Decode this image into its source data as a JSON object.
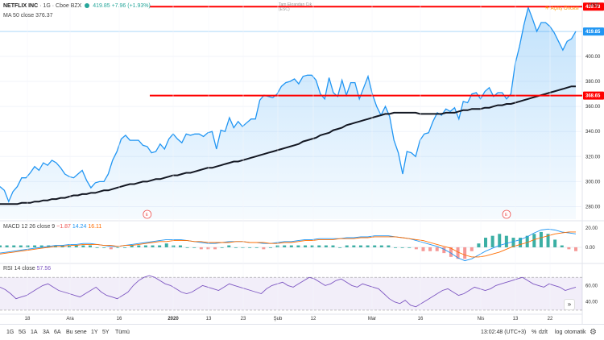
{
  "header": {
    "symbol": "NETFLIX INC",
    "interval": "1G",
    "exchange": "Cboe BZX",
    "price": "419.85",
    "change": "+7.96",
    "change_pct": "(+1.93%)",
    "ma_label": "MA 50 close",
    "ma_value": "376.37",
    "fullscreen_hint": "Tam Ekrandan Çık\n(ESC)",
    "market_status": "Açılış Öncesi",
    "currency": "USD"
  },
  "price_axis": {
    "ticks": [
      "400.00",
      "380.00",
      "360.00",
      "340.00",
      "320.00",
      "300.00",
      "280.00"
    ],
    "badges": [
      {
        "label": "439.73",
        "color": "#ff0000"
      },
      {
        "label": "419.85",
        "color": "#2196f3"
      },
      {
        "label": "368.65",
        "color": "#ff0000"
      }
    ]
  },
  "macd": {
    "label": "MACD 12 26 close 9",
    "hist": "−1.87",
    "macd": "14.24",
    "signal": "16.11",
    "ticks": [
      "20.00",
      "0.00"
    ]
  },
  "rsi": {
    "label": "RSI 14 close",
    "value": "57.56",
    "ticks": [
      "60.00",
      "40.00"
    ]
  },
  "time_axis": [
    "18",
    "Ara",
    "16",
    "2020",
    "13",
    "23",
    "Şub",
    "12",
    "Mar",
    "16",
    "Nis",
    "13",
    "22"
  ],
  "earnings_marker": "E",
  "bottom_bar": {
    "ranges": [
      "1G",
      "5G",
      "1A",
      "3A",
      "6A",
      "Bu sene",
      "1Y",
      "5Y",
      "Tümü"
    ],
    "time": "13:02:48 (UTC+3)",
    "pct": "%",
    "log": "log",
    "auto": "otomatik",
    "adjust": "dzlt"
  },
  "colors": {
    "price_line": "#2196f3",
    "ma_line": "#131722",
    "level_line": "#ff0000",
    "macd_line": "#2196f3",
    "signal_line": "#ff6d00",
    "hist_up": "#26a69a",
    "hist_down": "#ef5350",
    "rsi_line": "#7e57c2",
    "rsi_band": "#7e57c2"
  },
  "chart_data": {
    "type": "line",
    "title": "NETFLIX INC · 1G · Cboe BZX",
    "ylim": [
      270,
      445
    ],
    "levels": [
      439.73,
      368.65
    ],
    "last_price": 419.85,
    "series": [
      {
        "name": "close",
        "values": [
          296,
          293,
          284,
          292,
          296,
          303,
          303,
          307,
          312,
          309,
          315,
          313,
          317,
          315,
          311,
          306,
          304,
          303,
          306,
          309,
          301,
          295,
          299,
          300,
          300,
          306,
          317,
          324,
          334,
          337,
          333,
          333,
          333,
          329,
          328,
          323,
          324,
          330,
          326,
          334,
          338,
          334,
          331,
          338,
          337,
          338,
          338,
          336,
          339,
          340,
          326,
          341,
          340,
          351,
          343,
          348,
          344,
          347,
          350,
          350,
          365,
          369,
          368,
          367,
          370,
          376,
          379,
          380,
          382,
          378,
          384,
          385,
          385,
          381,
          370,
          366,
          383,
          371,
          368,
          381,
          369,
          379,
          379,
          366,
          375,
          384,
          370,
          360,
          353,
          360,
          352,
          333,
          323,
          306,
          324,
          323,
          320,
          333,
          338,
          339,
          348,
          355,
          353,
          358,
          356,
          359,
          350,
          364,
          363,
          370,
          371,
          366,
          372,
          375,
          368,
          371,
          371,
          366,
          370,
          394,
          408,
          425,
          439,
          430,
          420,
          427,
          427,
          424,
          419,
          412,
          405,
          412,
          414,
          420
        ]
      },
      {
        "name": "MA 50 close",
        "values": [
          282,
          282,
          282,
          282,
          282,
          283,
          283,
          283,
          284,
          284,
          285,
          285,
          286,
          286,
          287,
          287,
          288,
          289,
          289,
          290,
          290,
          291,
          291,
          292,
          293,
          293,
          294,
          295,
          296,
          297,
          298,
          298,
          299,
          300,
          300,
          301,
          302,
          302,
          303,
          304,
          305,
          305,
          306,
          307,
          307,
          308,
          309,
          310,
          311,
          311,
          312,
          313,
          314,
          315,
          316,
          316,
          317,
          318,
          319,
          320,
          321,
          322,
          323,
          324,
          325,
          326,
          327,
          328,
          329,
          330,
          332,
          333,
          334,
          335,
          337,
          338,
          339,
          341,
          342,
          343,
          345,
          346,
          347,
          348,
          349,
          350,
          351,
          352,
          353,
          354,
          354,
          355,
          355,
          355,
          355,
          355,
          355,
          354,
          354,
          354,
          354,
          354,
          354,
          355,
          355,
          355,
          356,
          357,
          357,
          358,
          358,
          358,
          359,
          359,
          360,
          361,
          361,
          362,
          362,
          363,
          364,
          365,
          366,
          367,
          368,
          369,
          370,
          371,
          372,
          373,
          374,
          375,
          376,
          376
        ]
      }
    ],
    "macd_series": [
      {
        "name": "MACD",
        "values": [
          -6,
          -5,
          -4,
          -3,
          -2,
          -1,
          0,
          1,
          2,
          2,
          3,
          3,
          4,
          4,
          3,
          2,
          1,
          1,
          2,
          3,
          4,
          5,
          6,
          7,
          8,
          8,
          8,
          7,
          6,
          5,
          4,
          4,
          5,
          6,
          6,
          6,
          5,
          5,
          4,
          4,
          5,
          6,
          6,
          7,
          8,
          8,
          9,
          9,
          9,
          9,
          10,
          10,
          11,
          11,
          12,
          12,
          12,
          11,
          10,
          9,
          7,
          5,
          3,
          1,
          -2,
          -6,
          -11,
          -14,
          -12,
          -8,
          -4,
          -1,
          2,
          4,
          6,
          8,
          11,
          15,
          18,
          19,
          18,
          16,
          15,
          14
        ]
      },
      {
        "name": "signal",
        "values": [
          -7,
          -6,
          -5,
          -4,
          -3,
          -2,
          -1,
          0,
          1,
          1,
          2,
          2,
          3,
          3,
          3,
          2,
          2,
          1,
          2,
          2,
          3,
          4,
          5,
          6,
          6,
          7,
          7,
          7,
          6,
          6,
          5,
          5,
          5,
          5,
          6,
          6,
          5,
          5,
          5,
          4,
          4,
          5,
          5,
          6,
          7,
          7,
          8,
          8,
          8,
          9,
          9,
          9,
          10,
          10,
          11,
          11,
          11,
          11,
          10,
          9,
          8,
          7,
          5,
          3,
          1,
          -1,
          -5,
          -8,
          -10,
          -10,
          -9,
          -7,
          -5,
          -2,
          1,
          3,
          5,
          8,
          10,
          12,
          14,
          15,
          16,
          16
        ]
      }
    ],
    "rsi_values": [
      58,
      55,
      50,
      44,
      46,
      48,
      52,
      56,
      60,
      62,
      58,
      54,
      52,
      50,
      48,
      46,
      50,
      54,
      58,
      52,
      48,
      46,
      44,
      48,
      52,
      60,
      66,
      70,
      72,
      70,
      66,
      62,
      60,
      56,
      52,
      50,
      52,
      56,
      60,
      58,
      56,
      54,
      58,
      62,
      60,
      58,
      56,
      54,
      52,
      50,
      56,
      60,
      62,
      64,
      60,
      58,
      62,
      66,
      70,
      68,
      64,
      60,
      62,
      66,
      68,
      64,
      60,
      58,
      62,
      60,
      58,
      56,
      50,
      44,
      40,
      38,
      42,
      36,
      34,
      38,
      42,
      46,
      50,
      54,
      56,
      52,
      48,
      50,
      54,
      58,
      56,
      54,
      56,
      60,
      62,
      64,
      66,
      68,
      70,
      66,
      62,
      60,
      58,
      62,
      60,
      58,
      54,
      56,
      58
    ],
    "rsi_band": [
      30,
      70
    ]
  }
}
